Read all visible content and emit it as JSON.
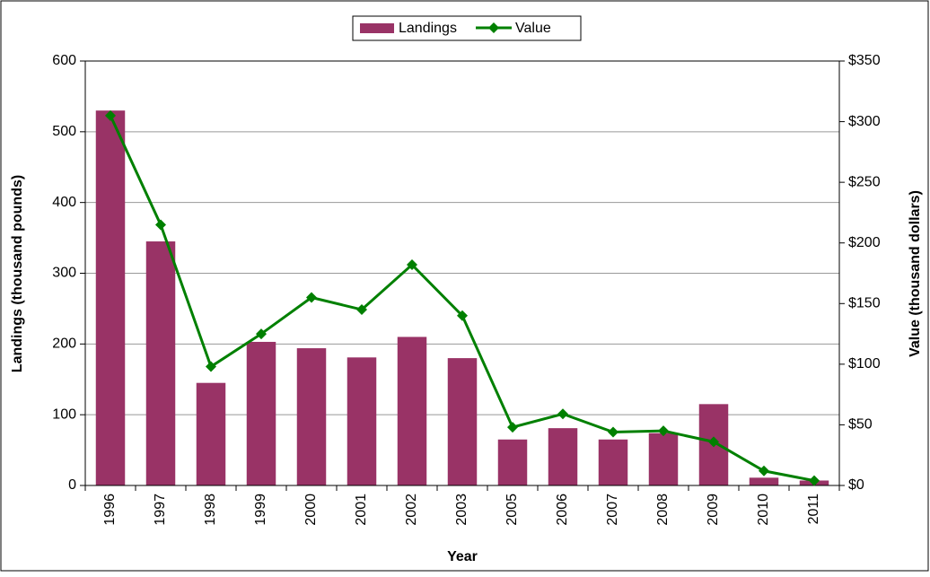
{
  "chart_data": {
    "type": "bar_line",
    "x_label": "Year",
    "y_label": "Landings (thousand pounds)",
    "y2_label": "Value (thousand dollars)",
    "categories": [
      "1996",
      "1997",
      "1998",
      "1999",
      "2000",
      "2001",
      "2002",
      "2003",
      "2005",
      "2006",
      "2007",
      "2008",
      "2009",
      "2010",
      "2011"
    ],
    "series": [
      {
        "name": "Landings",
        "type": "bar",
        "color": "#993366",
        "values": [
          530,
          345,
          145,
          203,
          194,
          181,
          210,
          180,
          65,
          81,
          65,
          74,
          115,
          11,
          7
        ]
      },
      {
        "name": "Value",
        "type": "line",
        "axis": "y2",
        "color": "#008000",
        "values": [
          305,
          215,
          98,
          125,
          155,
          145,
          182,
          140,
          48,
          59,
          44,
          45,
          36,
          12,
          4
        ]
      }
    ],
    "ylim": [
      0,
      600
    ],
    "yticks": [
      0,
      100,
      200,
      300,
      400,
      500,
      600
    ],
    "y2lim": [
      0,
      350
    ],
    "y2ticks": [
      {
        "value": 0,
        "label": "$0"
      },
      {
        "value": 50,
        "label": "$50"
      },
      {
        "value": 100,
        "label": "$100"
      },
      {
        "value": 150,
        "label": "$150"
      },
      {
        "value": 200,
        "label": "$200"
      },
      {
        "value": 250,
        "label": "$250"
      },
      {
        "value": 300,
        "label": "$300"
      },
      {
        "value": 350,
        "label": "$350"
      }
    ],
    "grid": true,
    "legend": "top"
  }
}
